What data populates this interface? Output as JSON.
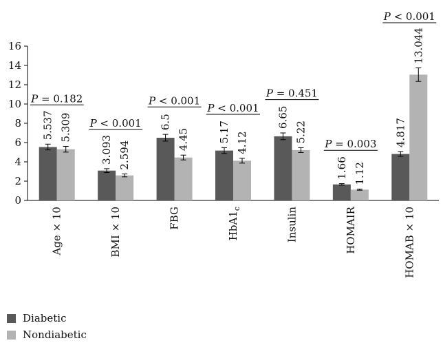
{
  "colors": {
    "diabetic": "#595959",
    "nondiabetic": "#b3b3b3"
  },
  "chart_data": {
    "type": "bar",
    "categories": [
      "Age × 10",
      "BMI × 10",
      "FBG",
      "HbA1c",
      "Insulin",
      "HOMAIR",
      "HOMAB × 10"
    ],
    "category_parts": [
      {
        "main": "Age × 10",
        "sub": ""
      },
      {
        "main": "BMI × 10",
        "sub": ""
      },
      {
        "main": "FBG",
        "sub": ""
      },
      {
        "main": "HbA1",
        "sub": "c"
      },
      {
        "main": "Insulin",
        "sub": ""
      },
      {
        "main": "HOMAIR",
        "sub": ""
      },
      {
        "main": "HOMAB × 10",
        "sub": ""
      }
    ],
    "series": [
      {
        "name": "Diabetic",
        "values": [
          5.537,
          3.093,
          6.5,
          5.17,
          6.65,
          1.66,
          4.817
        ],
        "labels": [
          "5.537",
          "3.093",
          "6.5",
          "5.17",
          "6.65",
          "1.66",
          "4.817"
        ],
        "errors": [
          0.3,
          0.2,
          0.35,
          0.3,
          0.35,
          0.08,
          0.25
        ]
      },
      {
        "name": "Nondiabetic",
        "values": [
          5.309,
          2.594,
          4.45,
          4.12,
          5.22,
          1.12,
          13.044
        ],
        "labels": [
          "5.309",
          "2.594",
          "4.45",
          "4.12",
          "5.22",
          "1.12",
          "13.044"
        ],
        "errors": [
          0.3,
          0.15,
          0.25,
          0.25,
          0.25,
          0.06,
          0.7
        ]
      }
    ],
    "p_values": [
      "P = 0.182",
      "P < 0.001",
      "P < 0.001",
      "P < 0.001",
      "P = 0.451",
      "P = 0.003",
      "P < 0.001"
    ],
    "ylim": [
      0,
      16
    ],
    "yticks": [
      "0",
      "2",
      "4",
      "6",
      "8",
      "10",
      "12",
      "14",
      "16"
    ],
    "legend_position": "bottom-left",
    "title": "",
    "xlabel": "",
    "ylabel": ""
  }
}
